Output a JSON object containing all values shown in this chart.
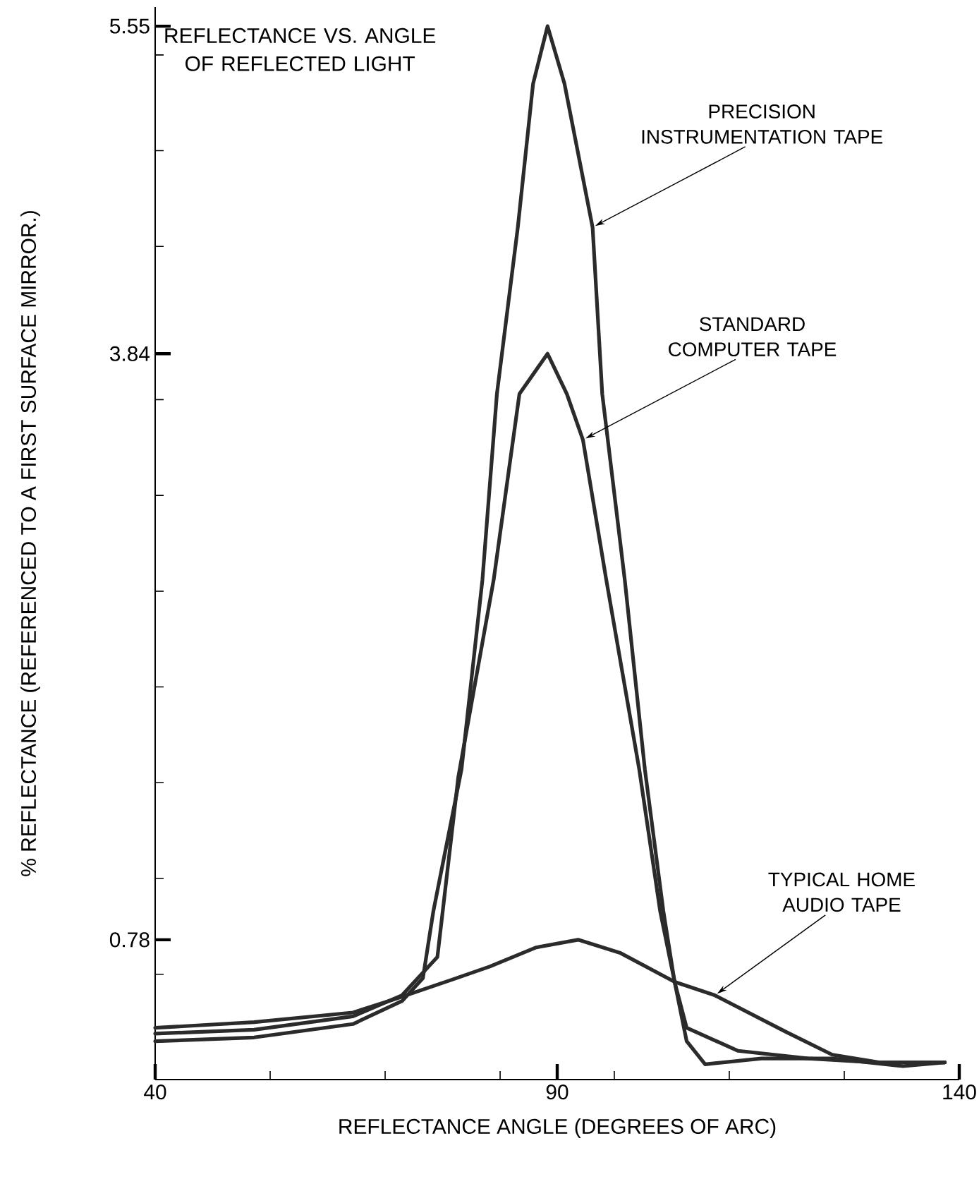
{
  "chart_data": {
    "type": "line",
    "title": "REFLECTANCE VS. ANGLE OF REFLECTED LIGHT",
    "xlabel": "REFLECTANCE ANGLE (DEGREES OF ARC)",
    "ylabel": "% REFLECTANCE (REFERENCED TO A FIRST SURFACE MIRROR.)",
    "xlim": [
      40,
      140
    ],
    "ylim": [
      0.05,
      5.65
    ],
    "xticks": [
      40,
      {
        "value": 54.3,
        "label": null
      },
      {
        "value": 68.6,
        "label": null
      },
      {
        "value": 82.9,
        "label": null
      },
      90,
      {
        "value": 97.1,
        "label": null
      },
      {
        "value": 111.4,
        "label": null
      },
      {
        "value": 125.7,
        "label": null
      },
      140
    ],
    "yticks": [
      {
        "value": 0.6,
        "label": null
      },
      0.78,
      {
        "value": 1.1,
        "label": null
      },
      {
        "value": 1.6,
        "label": null
      },
      {
        "value": 2.1,
        "label": null
      },
      {
        "value": 2.6,
        "label": null
      },
      {
        "value": 3.1,
        "label": null
      },
      {
        "value": 3.6,
        "label": null
      },
      3.84,
      {
        "value": 4.4,
        "label": null
      },
      {
        "value": 4.9,
        "label": null
      },
      {
        "value": 5.4,
        "label": null
      },
      5.55
    ],
    "grid": false,
    "line_style": "solid",
    "series": [
      {
        "color": "#2b2b2b",
        "x": [
          40,
          52.3,
          64.6,
          70.7,
          73.3,
          74.6,
          78.1,
          80.7,
          82.5,
          85.1,
          87,
          88.8,
          90.9,
          94.4,
          95.6,
          98.4,
          100.9,
          103.2,
          104.6,
          106.1,
          108.4,
          115.4,
          124.2,
          133,
          138.2
        ],
        "values": [
          0.25,
          0.27,
          0.34,
          0.46,
          0.58,
          0.93,
          1.67,
          2.66,
          3.63,
          4.5,
          5.25,
          5.55,
          5.25,
          4.5,
          3.63,
          2.66,
          1.67,
          0.93,
          0.56,
          0.25,
          0.13,
          0.16,
          0.16,
          0.12,
          0.14
        ]
      },
      {
        "color": "#2b2b2b",
        "x": [
          40,
          52.3,
          64.6,
          70.7,
          75.1,
          77.7,
          82.1,
          85.3,
          88.8,
          91.2,
          93.2,
          96.1,
          100.2,
          102.8,
          104.6,
          106.1,
          112.5,
          121.2,
          129.5,
          138.2
        ],
        "values": [
          0.29,
          0.31,
          0.38,
          0.49,
          0.69,
          1.63,
          2.66,
          3.63,
          3.84,
          3.63,
          3.39,
          2.66,
          1.67,
          0.93,
          0.56,
          0.32,
          0.2,
          0.16,
          0.14,
          0.14
        ]
      },
      {
        "color": "#2b2b2b",
        "x": [
          40,
          52.3,
          64.6,
          69.8,
          76.8,
          81.6,
          87.4,
          92.6,
          97.9,
          104.6,
          109.6,
          118.4,
          124.2,
          130,
          138.2
        ],
        "values": [
          0.32,
          0.35,
          0.4,
          0.47,
          0.57,
          0.64,
          0.74,
          0.78,
          0.71,
          0.56,
          0.49,
          0.3,
          0.18,
          0.14,
          0.14
        ]
      }
    ],
    "annotations": [
      {
        "text": "PRECISION INSTRUMENTATION TAPE",
        "x": 94.4,
        "y": 4.5
      },
      {
        "text": "STANDARD COMPUTER TAPE",
        "x": 93.2,
        "y": 3.39
      },
      {
        "text": "TYPICAL HOME AUDIO TAPE",
        "x": 109.6,
        "y": 0.49
      }
    ]
  }
}
